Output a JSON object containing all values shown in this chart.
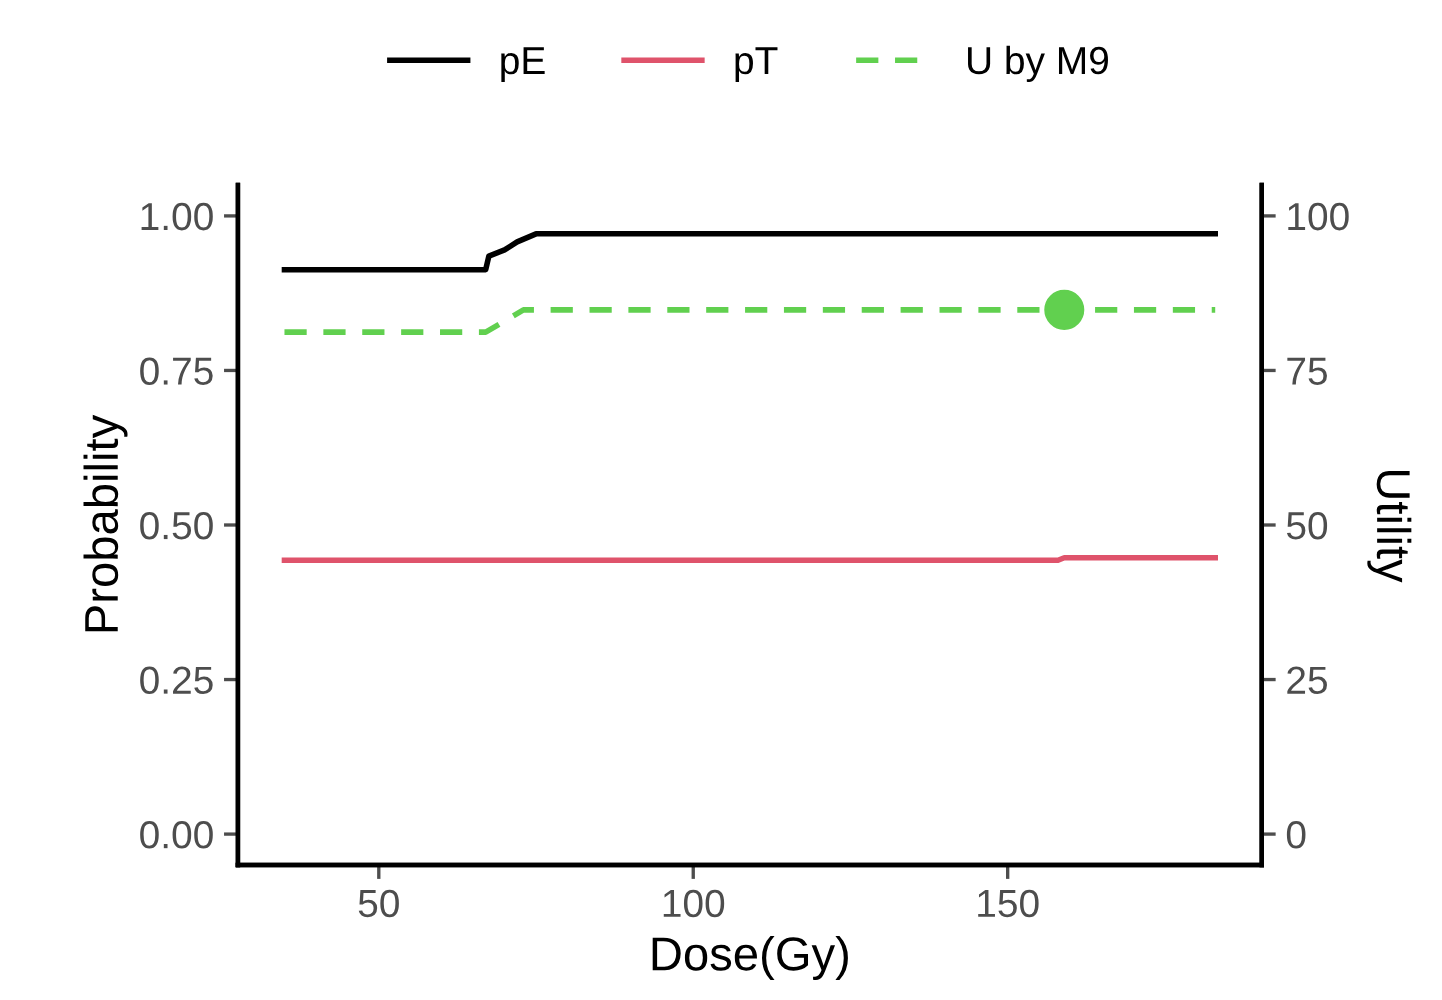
{
  "chart_data": {
    "type": "line",
    "xlabel": "Dose(Gy)",
    "ylabel": "Probability",
    "y2label": "Utility",
    "xlim": [
      27.6,
      190.4
    ],
    "xticks": [
      50,
      100,
      150
    ],
    "ylim": [
      -0.05,
      1.05
    ],
    "yticks": [
      {
        "value": 0,
        "label": "0.00"
      },
      {
        "value": 0.25,
        "label": "0.25"
      },
      {
        "value": 0.5,
        "label": "0.50"
      },
      {
        "value": 0.75,
        "label": "0.75"
      },
      {
        "value": 1,
        "label": "1.00"
      }
    ],
    "y2lim": [
      -5,
      105
    ],
    "y2ticks": [
      0,
      25,
      50,
      75,
      100
    ],
    "legend": "top",
    "grid": false,
    "series": [
      {
        "name": "pE",
        "color": "#000000",
        "line_style": "solid",
        "x": [
          35,
          67,
          67.5,
          70,
          72,
          75,
          183
        ],
        "values": [
          0.913,
          0.913,
          0.935,
          0.945,
          0.958,
          0.971,
          0.971
        ]
      },
      {
        "name": "pT",
        "color": "#df536b",
        "line_style": "solid",
        "x": [
          35,
          158,
          159,
          183
        ],
        "values": [
          0.443,
          0.443,
          0.447,
          0.447
        ]
      },
      {
        "name": "U by M9",
        "color": "#61d04f",
        "line_style": "dashed",
        "axis": "y2",
        "x": [
          35,
          67,
          73,
          183
        ],
        "values": [
          81.2,
          81.2,
          84.8,
          84.8
        ]
      },
      {
        "type": "scatter",
        "color": "#61d04f",
        "axis": "y2",
        "marker": "circle",
        "x": [
          159
        ],
        "values": [
          84.8
        ]
      }
    ]
  }
}
